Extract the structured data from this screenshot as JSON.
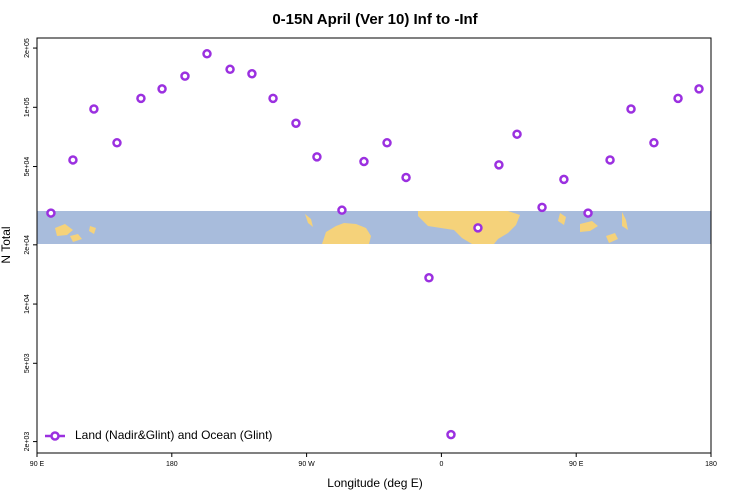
{
  "chart_data": {
    "type": "scatter",
    "title": "0-15N April (Ver 10)   Inf to -Inf",
    "x_label": "Longitude (deg E)",
    "y_label": "N Total",
    "log_scale_y": true,
    "legend_position": "lower left",
    "xlim": [
      90,
      540
    ],
    "ylim": [
      1750,
      225000
    ],
    "xticks": [
      {
        "value": 90,
        "label": "90 E"
      },
      180,
      {
        "value": 270,
        "label": "90 W"
      },
      {
        "value": 360,
        "label": "0"
      },
      {
        "value": 450,
        "label": "90 E"
      },
      {
        "value": 540,
        "label": "180"
      }
    ],
    "yticks": [
      {
        "value": 2000,
        "label": "2e+03"
      },
      {
        "value": 5000,
        "label": "5e+03"
      },
      {
        "value": 10000,
        "label": "1e+04"
      },
      {
        "value": 20000,
        "label": "2e+04"
      },
      {
        "value": 50000,
        "label": "5e+04"
      },
      {
        "value": 100000,
        "label": "1e+05"
      },
      {
        "value": 200000,
        "label": "2e+05"
      }
    ],
    "series": [
      {
        "name": "Land (Nadir&Glint) and Ocean (Glint)",
        "color": "#9b30e0",
        "x": [
          99.3,
          114,
          128,
          143.4,
          159.4,
          173.5,
          188.8,
          203.5,
          218.9,
          233.5,
          247.6,
          262.9,
          276.9,
          293.6,
          308.3,
          323.7,
          336.4,
          351.7,
          366.4,
          384.4,
          398.4,
          410.5,
          427.2,
          441.8,
          457.9,
          472.6,
          486.6,
          501.9,
          518,
          532
        ],
        "values": [
          29000,
          54000,
          98000,
          66000,
          111000,
          124000,
          144000,
          187000,
          156000,
          148000,
          111000,
          83000,
          56000,
          30000,
          53000,
          66000,
          44000,
          13600,
          2170,
          24400,
          51000,
          73000,
          31000,
          43000,
          29000,
          54000,
          98000,
          66000,
          111000,
          124000
        ]
      }
    ]
  }
}
